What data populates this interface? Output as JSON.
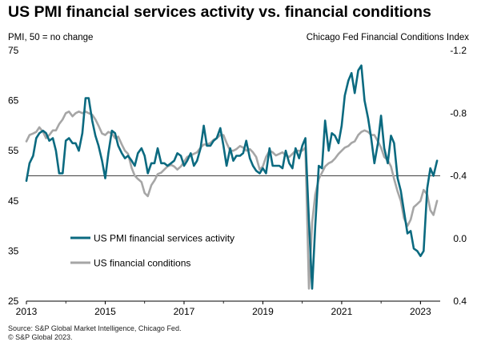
{
  "title": "US PMI financial services activity vs. financial conditions",
  "left_axis_title": "PMI, 50 = no change",
  "right_axis_title": "Chicago Fed Financial Conditions Index",
  "source_lines": [
    "Source: S&P Global Market Intelligence, Chicago Fed.",
    "© S&P Global 2023."
  ],
  "chart_data": {
    "type": "line",
    "xlabel": "",
    "ylabel": "PMI, 50 = no change",
    "y2label": "Chicago Fed Financial Conditions Index",
    "xlim": [
      2013.0,
      2023.5
    ],
    "ylim": [
      25,
      75
    ],
    "y2lim": [
      0.4,
      -1.2
    ],
    "y2_inverted": true,
    "x_ticks": [
      "2013",
      "2015",
      "2017",
      "2019",
      "2021",
      "2023"
    ],
    "y_ticks": [
      25,
      35,
      45,
      55,
      65,
      75
    ],
    "y2_ticks": [
      "-1.2",
      "-0.8",
      "-0.4",
      "0.0",
      "0.4"
    ],
    "reference_line": 50,
    "grid": false,
    "legend_position": "lower-left",
    "series": [
      {
        "name": "US PMI financial services activity",
        "axis": "left",
        "color": "#0b6a80",
        "points": [
          [
            2013.0,
            49.0
          ],
          [
            2013.08,
            52.5
          ],
          [
            2013.17,
            54.0
          ],
          [
            2013.25,
            57.5
          ],
          [
            2013.33,
            58.5
          ],
          [
            2013.42,
            59.0
          ],
          [
            2013.5,
            58.5
          ],
          [
            2013.58,
            57.0
          ],
          [
            2013.67,
            57.5
          ],
          [
            2013.75,
            55.0
          ],
          [
            2013.83,
            50.5
          ],
          [
            2013.92,
            50.5
          ],
          [
            2014.0,
            57.0
          ],
          [
            2014.08,
            57.5
          ],
          [
            2014.17,
            56.5
          ],
          [
            2014.25,
            56.5
          ],
          [
            2014.33,
            55.0
          ],
          [
            2014.42,
            58.5
          ],
          [
            2014.5,
            65.5
          ],
          [
            2014.58,
            65.5
          ],
          [
            2014.67,
            61.0
          ],
          [
            2014.75,
            58.0
          ],
          [
            2014.83,
            56.0
          ],
          [
            2014.92,
            53.0
          ],
          [
            2015.0,
            49.5
          ],
          [
            2015.08,
            54.5
          ],
          [
            2015.17,
            59.0
          ],
          [
            2015.25,
            58.5
          ],
          [
            2015.33,
            56.0
          ],
          [
            2015.42,
            54.5
          ],
          [
            2015.5,
            53.5
          ],
          [
            2015.58,
            54.0
          ],
          [
            2015.67,
            53.0
          ],
          [
            2015.75,
            52.0
          ],
          [
            2015.83,
            54.5
          ],
          [
            2015.92,
            55.5
          ],
          [
            2016.0,
            54.0
          ],
          [
            2016.08,
            50.5
          ],
          [
            2016.17,
            52.5
          ],
          [
            2016.25,
            52.5
          ],
          [
            2016.33,
            55.5
          ],
          [
            2016.42,
            52.5
          ],
          [
            2016.5,
            52.5
          ],
          [
            2016.58,
            52.0
          ],
          [
            2016.67,
            52.5
          ],
          [
            2016.75,
            53.0
          ],
          [
            2016.83,
            54.5
          ],
          [
            2016.92,
            54.0
          ],
          [
            2017.0,
            52.0
          ],
          [
            2017.08,
            53.0
          ],
          [
            2017.17,
            54.5
          ],
          [
            2017.25,
            52.0
          ],
          [
            2017.33,
            53.0
          ],
          [
            2017.42,
            55.5
          ],
          [
            2017.5,
            60.0
          ],
          [
            2017.58,
            56.0
          ],
          [
            2017.67,
            56.0
          ],
          [
            2017.75,
            57.0
          ],
          [
            2017.83,
            57.5
          ],
          [
            2017.92,
            59.5
          ],
          [
            2018.0,
            56.0
          ],
          [
            2018.08,
            52.0
          ],
          [
            2018.17,
            55.5
          ],
          [
            2018.25,
            53.0
          ],
          [
            2018.33,
            54.0
          ],
          [
            2018.42,
            54.0
          ],
          [
            2018.5,
            54.5
          ],
          [
            2018.58,
            57.0
          ],
          [
            2018.67,
            53.5
          ],
          [
            2018.75,
            52.0
          ],
          [
            2018.83,
            51.0
          ],
          [
            2018.92,
            50.5
          ],
          [
            2019.0,
            51.5
          ],
          [
            2019.08,
            50.5
          ],
          [
            2019.17,
            55.5
          ],
          [
            2019.25,
            52.0
          ],
          [
            2019.33,
            52.0
          ],
          [
            2019.42,
            52.0
          ],
          [
            2019.5,
            51.5
          ],
          [
            2019.58,
            55.0
          ],
          [
            2019.67,
            52.5
          ],
          [
            2019.75,
            51.5
          ],
          [
            2019.83,
            55.5
          ],
          [
            2019.92,
            53.5
          ],
          [
            2020.0,
            56.0
          ],
          [
            2020.08,
            57.5
          ],
          [
            2020.17,
            41.0
          ],
          [
            2020.25,
            27.5
          ],
          [
            2020.33,
            40.0
          ],
          [
            2020.42,
            52.0
          ],
          [
            2020.5,
            51.5
          ],
          [
            2020.58,
            61.0
          ],
          [
            2020.67,
            55.0
          ],
          [
            2020.75,
            58.5
          ],
          [
            2020.83,
            58.0
          ],
          [
            2020.92,
            56.5
          ],
          [
            2021.0,
            60.0
          ],
          [
            2021.08,
            66.0
          ],
          [
            2021.17,
            69.0
          ],
          [
            2021.25,
            70.5
          ],
          [
            2021.33,
            66.5
          ],
          [
            2021.42,
            71.0
          ],
          [
            2021.5,
            72.0
          ],
          [
            2021.58,
            65.0
          ],
          [
            2021.67,
            61.5
          ],
          [
            2021.75,
            57.5
          ],
          [
            2021.83,
            52.5
          ],
          [
            2021.92,
            56.5
          ],
          [
            2022.0,
            62.0
          ],
          [
            2022.08,
            55.5
          ],
          [
            2022.17,
            52.5
          ],
          [
            2022.25,
            58.0
          ],
          [
            2022.33,
            56.5
          ],
          [
            2022.42,
            49.5
          ],
          [
            2022.5,
            47.0
          ],
          [
            2022.58,
            43.0
          ],
          [
            2022.67,
            38.5
          ],
          [
            2022.75,
            39.0
          ],
          [
            2022.83,
            35.5
          ],
          [
            2022.92,
            35.0
          ],
          [
            2023.0,
            34.0
          ],
          [
            2023.08,
            35.0
          ],
          [
            2023.17,
            47.5
          ],
          [
            2023.25,
            51.5
          ],
          [
            2023.33,
            50.0
          ],
          [
            2023.42,
            53.0
          ]
        ]
      },
      {
        "name": "US financial conditions",
        "axis": "right",
        "color": "#a6a6a6",
        "points": [
          [
            2013.0,
            -0.62
          ],
          [
            2013.08,
            -0.66
          ],
          [
            2013.17,
            -0.67
          ],
          [
            2013.25,
            -0.68
          ],
          [
            2013.33,
            -0.71
          ],
          [
            2013.42,
            -0.68
          ],
          [
            2013.5,
            -0.64
          ],
          [
            2013.58,
            -0.66
          ],
          [
            2013.67,
            -0.69
          ],
          [
            2013.75,
            -0.69
          ],
          [
            2013.83,
            -0.73
          ],
          [
            2013.92,
            -0.76
          ],
          [
            2014.0,
            -0.8
          ],
          [
            2014.08,
            -0.81
          ],
          [
            2014.17,
            -0.78
          ],
          [
            2014.25,
            -0.8
          ],
          [
            2014.33,
            -0.81
          ],
          [
            2014.42,
            -0.8
          ],
          [
            2014.5,
            -0.81
          ],
          [
            2014.58,
            -0.8
          ],
          [
            2014.67,
            -0.79
          ],
          [
            2014.75,
            -0.76
          ],
          [
            2014.83,
            -0.72
          ],
          [
            2014.92,
            -0.67
          ],
          [
            2015.0,
            -0.66
          ],
          [
            2015.08,
            -0.68
          ],
          [
            2015.17,
            -0.67
          ],
          [
            2015.25,
            -0.64
          ],
          [
            2015.33,
            -0.65
          ],
          [
            2015.42,
            -0.6
          ],
          [
            2015.5,
            -0.56
          ],
          [
            2015.58,
            -0.54
          ],
          [
            2015.67,
            -0.45
          ],
          [
            2015.75,
            -0.4
          ],
          [
            2015.83,
            -0.38
          ],
          [
            2015.92,
            -0.36
          ],
          [
            2016.0,
            -0.29
          ],
          [
            2016.08,
            -0.27
          ],
          [
            2016.17,
            -0.34
          ],
          [
            2016.25,
            -0.37
          ],
          [
            2016.33,
            -0.41
          ],
          [
            2016.42,
            -0.42
          ],
          [
            2016.5,
            -0.44
          ],
          [
            2016.58,
            -0.46
          ],
          [
            2016.67,
            -0.47
          ],
          [
            2016.75,
            -0.46
          ],
          [
            2016.83,
            -0.44
          ],
          [
            2016.92,
            -0.46
          ],
          [
            2017.0,
            -0.49
          ],
          [
            2017.08,
            -0.52
          ],
          [
            2017.17,
            -0.53
          ],
          [
            2017.25,
            -0.54
          ],
          [
            2017.33,
            -0.55
          ],
          [
            2017.42,
            -0.58
          ],
          [
            2017.5,
            -0.6
          ],
          [
            2017.58,
            -0.6
          ],
          [
            2017.67,
            -0.61
          ],
          [
            2017.75,
            -0.63
          ],
          [
            2017.83,
            -0.64
          ],
          [
            2017.92,
            -0.66
          ],
          [
            2018.0,
            -0.66
          ],
          [
            2018.08,
            -0.61
          ],
          [
            2018.17,
            -0.56
          ],
          [
            2018.25,
            -0.56
          ],
          [
            2018.33,
            -0.57
          ],
          [
            2018.42,
            -0.59
          ],
          [
            2018.5,
            -0.58
          ],
          [
            2018.58,
            -0.56
          ],
          [
            2018.67,
            -0.57
          ],
          [
            2018.75,
            -0.55
          ],
          [
            2018.83,
            -0.52
          ],
          [
            2018.92,
            -0.44
          ],
          [
            2019.0,
            -0.46
          ],
          [
            2019.08,
            -0.52
          ],
          [
            2019.17,
            -0.56
          ],
          [
            2019.25,
            -0.55
          ],
          [
            2019.33,
            -0.53
          ],
          [
            2019.42,
            -0.54
          ],
          [
            2019.5,
            -0.55
          ],
          [
            2019.58,
            -0.53
          ],
          [
            2019.67,
            -0.52
          ],
          [
            2019.75,
            -0.54
          ],
          [
            2019.83,
            -0.56
          ],
          [
            2019.92,
            -0.56
          ],
          [
            2020.0,
            -0.56
          ],
          [
            2020.08,
            -0.58
          ],
          [
            2020.17,
            0.32
          ],
          [
            2020.25,
            -0.1
          ],
          [
            2020.33,
            -0.28
          ],
          [
            2020.42,
            -0.38
          ],
          [
            2020.5,
            -0.42
          ],
          [
            2020.58,
            -0.46
          ],
          [
            2020.67,
            -0.48
          ],
          [
            2020.75,
            -0.49
          ],
          [
            2020.83,
            -0.51
          ],
          [
            2020.92,
            -0.54
          ],
          [
            2021.0,
            -0.56
          ],
          [
            2021.08,
            -0.58
          ],
          [
            2021.17,
            -0.59
          ],
          [
            2021.25,
            -0.61
          ],
          [
            2021.33,
            -0.62
          ],
          [
            2021.42,
            -0.66
          ],
          [
            2021.5,
            -0.68
          ],
          [
            2021.58,
            -0.69
          ],
          [
            2021.67,
            -0.68
          ],
          [
            2021.75,
            -0.66
          ],
          [
            2021.83,
            -0.66
          ],
          [
            2021.92,
            -0.62
          ],
          [
            2022.0,
            -0.58
          ],
          [
            2022.08,
            -0.52
          ],
          [
            2022.17,
            -0.5
          ],
          [
            2022.25,
            -0.46
          ],
          [
            2022.33,
            -0.38
          ],
          [
            2022.42,
            -0.3
          ],
          [
            2022.5,
            -0.24
          ],
          [
            2022.58,
            -0.13
          ],
          [
            2022.67,
            -0.08
          ],
          [
            2022.75,
            -0.12
          ],
          [
            2022.83,
            -0.2
          ],
          [
            2022.92,
            -0.22
          ],
          [
            2023.0,
            -0.24
          ],
          [
            2023.08,
            -0.31
          ],
          [
            2023.17,
            -0.28
          ],
          [
            2023.25,
            -0.18
          ],
          [
            2023.33,
            -0.15
          ],
          [
            2023.42,
            -0.24
          ]
        ]
      }
    ]
  }
}
